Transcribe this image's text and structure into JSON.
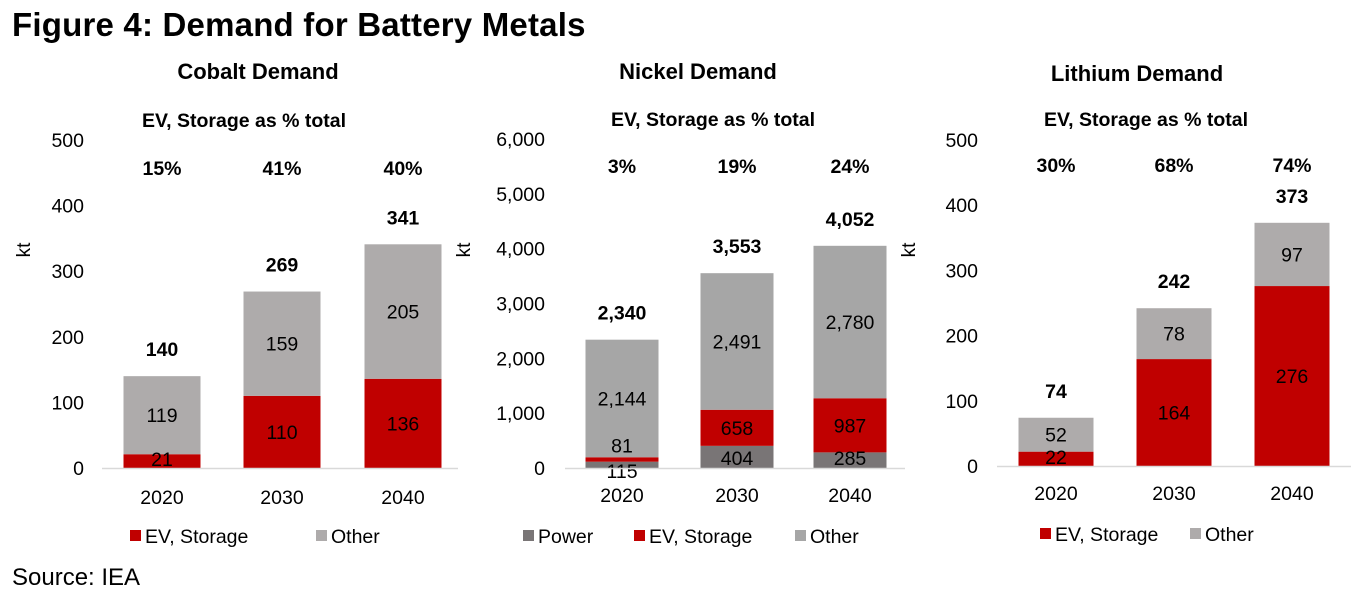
{
  "figure": {
    "title": "Figure 4: Demand for Battery Metals",
    "source": "Source: IEA"
  },
  "colors": {
    "Power": "#797576",
    "EV, Storage": "#C00000",
    "Other_cobalt": "#AEABAB",
    "Other_nickel": "#A6A6A6",
    "Other_lithium": "#AEABAB",
    "axis": "#D9D9D9"
  },
  "chart_data": [
    {
      "type": "bar",
      "stacked": true,
      "title": "Cobalt Demand",
      "subtitle": "EV, Storage as % total",
      "ylabel": "kt",
      "xlabel": "",
      "ylim": [
        0,
        500
      ],
      "yticks": [
        0,
        100,
        200,
        300,
        400,
        500
      ],
      "ytick_labels": [
        "0",
        "100",
        "200",
        "300",
        "400",
        "500"
      ],
      "categories": [
        "2020",
        "2030",
        "2040"
      ],
      "series": [
        {
          "name": "EV, Storage",
          "values": [
            21,
            110,
            136
          ],
          "labels": [
            "21",
            "110",
            "136"
          ]
        },
        {
          "name": "Other",
          "values": [
            119,
            159,
            205
          ],
          "labels": [
            "119",
            "159",
            "205"
          ]
        }
      ],
      "totals": [
        "140",
        "269",
        "341"
      ],
      "pct_labels": [
        "15%",
        "41%",
        "40%"
      ],
      "legend": [
        "EV, Storage",
        "Other"
      ],
      "legend_position": "bottom",
      "grid": false
    },
    {
      "type": "bar",
      "stacked": true,
      "title": "Nickel Demand",
      "subtitle": "EV, Storage as % total",
      "ylabel": "kt",
      "xlabel": "",
      "ylim": [
        0,
        6000
      ],
      "yticks": [
        0,
        1000,
        2000,
        3000,
        4000,
        5000,
        6000
      ],
      "ytick_labels": [
        "0",
        "1,000",
        "2,000",
        "3,000",
        "4,000",
        "5,000",
        "6,000"
      ],
      "categories": [
        "2020",
        "2030",
        "2040"
      ],
      "series": [
        {
          "name": "Power",
          "values": [
            115,
            404,
            285
          ],
          "labels": [
            "115",
            "404",
            "285"
          ]
        },
        {
          "name": "EV, Storage",
          "values": [
            81,
            658,
            987
          ],
          "labels": [
            "81",
            "658",
            "987"
          ]
        },
        {
          "name": "Other",
          "values": [
            2144,
            2491,
            2780
          ],
          "labels": [
            "2,144",
            "2,491",
            "2,780"
          ]
        }
      ],
      "totals": [
        "2,340",
        "3,553",
        "4,052"
      ],
      "pct_labels": [
        "3%",
        "19%",
        "24%"
      ],
      "legend": [
        "Power",
        "EV, Storage",
        "Other"
      ],
      "legend_position": "bottom",
      "grid": false
    },
    {
      "type": "bar",
      "stacked": true,
      "title": "Lithium Demand",
      "subtitle": "EV, Storage as % total",
      "ylabel": "kt",
      "xlabel": "",
      "ylim": [
        0,
        500
      ],
      "yticks": [
        0,
        100,
        200,
        300,
        400,
        500
      ],
      "ytick_labels": [
        "0",
        "100",
        "200",
        "300",
        "400",
        "500"
      ],
      "categories": [
        "2020",
        "2030",
        "2040"
      ],
      "series": [
        {
          "name": "EV, Storage",
          "values": [
            22,
            164,
            276
          ],
          "labels": [
            "22",
            "164",
            "276"
          ]
        },
        {
          "name": "Other",
          "values": [
            52,
            78,
            97
          ],
          "labels": [
            "52",
            "78",
            "97"
          ]
        }
      ],
      "totals": [
        "74",
        "242",
        "373"
      ],
      "pct_labels": [
        "30%",
        "68%",
        "74%"
      ],
      "legend": [
        "EV, Storage",
        "Other"
      ],
      "legend_position": "bottom",
      "grid": false
    }
  ]
}
